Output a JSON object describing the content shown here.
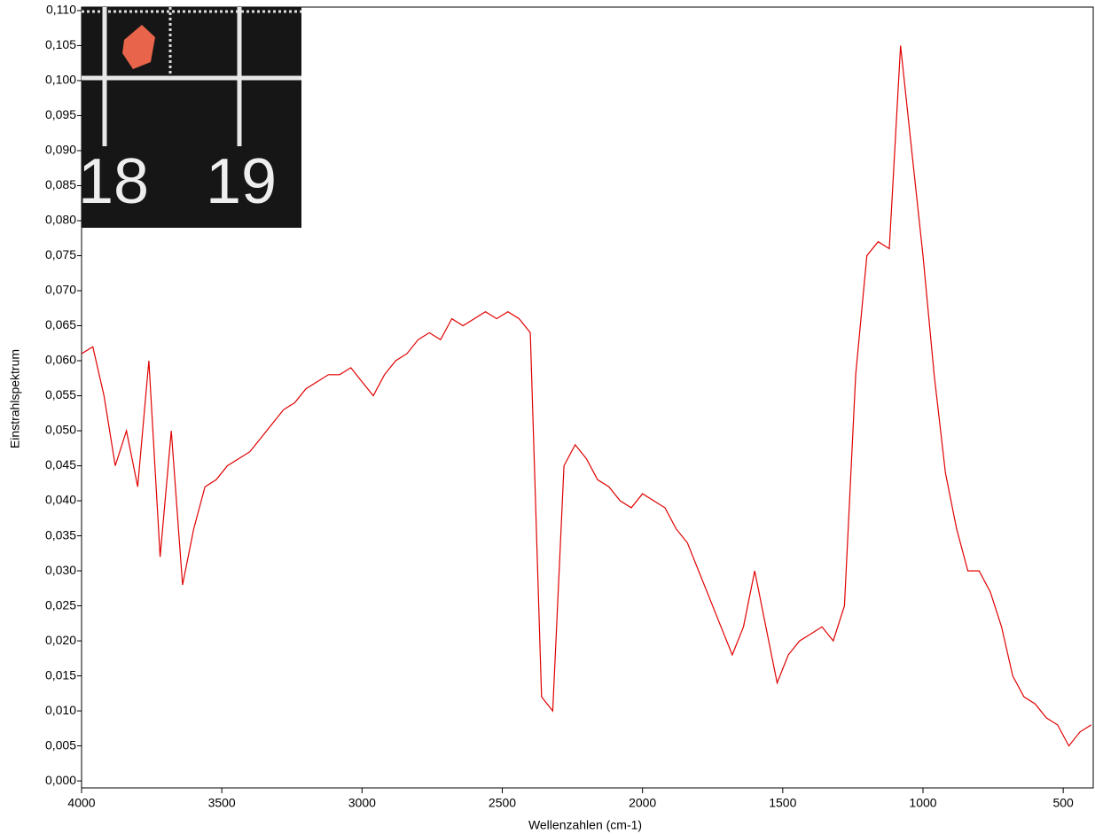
{
  "chart_data": {
    "type": "line",
    "x_label": "Wellenzahlen (cm-1)",
    "y_label": "Einstrahlspektrum",
    "color": "#e00000",
    "inset_text": [
      "18",
      "19"
    ],
    "x": [
      4000,
      3960,
      3920,
      3880,
      3840,
      3800,
      3760,
      3720,
      3680,
      3640,
      3600,
      3560,
      3520,
      3480,
      3440,
      3400,
      3360,
      3320,
      3280,
      3240,
      3200,
      3160,
      3120,
      3080,
      3040,
      3000,
      2960,
      2920,
      2880,
      2840,
      2800,
      2760,
      2720,
      2680,
      2640,
      2600,
      2560,
      2520,
      2480,
      2440,
      2400,
      2360,
      2320,
      2280,
      2240,
      2200,
      2160,
      2120,
      2080,
      2040,
      2000,
      1960,
      1920,
      1880,
      1840,
      1800,
      1760,
      1720,
      1680,
      1640,
      1600,
      1560,
      1520,
      1480,
      1440,
      1400,
      1360,
      1320,
      1280,
      1240,
      1200,
      1160,
      1120,
      1080,
      1040,
      1000,
      960,
      920,
      880,
      840,
      800,
      760,
      720,
      680,
      640,
      600,
      560,
      520,
      480,
      440,
      400
    ],
    "values": [
      0.061,
      0.062,
      0.055,
      0.045,
      0.05,
      0.042,
      0.06,
      0.032,
      0.05,
      0.028,
      0.036,
      0.042,
      0.043,
      0.045,
      0.046,
      0.047,
      0.049,
      0.051,
      0.053,
      0.054,
      0.056,
      0.057,
      0.058,
      0.058,
      0.059,
      0.057,
      0.055,
      0.058,
      0.06,
      0.061,
      0.063,
      0.064,
      0.063,
      0.066,
      0.065,
      0.066,
      0.067,
      0.066,
      0.067,
      0.066,
      0.064,
      0.012,
      0.01,
      0.045,
      0.048,
      0.046,
      0.043,
      0.042,
      0.04,
      0.039,
      0.041,
      0.04,
      0.039,
      0.036,
      0.034,
      0.03,
      0.026,
      0.022,
      0.018,
      0.022,
      0.03,
      0.022,
      0.014,
      0.018,
      0.02,
      0.021,
      0.022,
      0.02,
      0.025,
      0.058,
      0.075,
      0.077,
      0.076,
      0.105,
      0.09,
      0.075,
      0.058,
      0.044,
      0.036,
      0.03,
      0.03,
      0.027,
      0.022,
      0.015,
      0.012,
      0.011,
      0.009,
      0.008,
      0.005,
      0.007,
      0.008
    ],
    "xlim": [
      4000,
      393
    ],
    "xticks": [
      4000,
      3500,
      3000,
      2500,
      2000,
      1500,
      1000,
      500
    ],
    "ylim": [
      -0.001,
      0.1105
    ],
    "yticks": [
      {
        "value": 0,
        "label": "0,000"
      },
      {
        "value": 0.005,
        "label": "0,005"
      },
      {
        "value": 0.01,
        "label": "0,010"
      },
      {
        "value": 0.015,
        "label": "0,015"
      },
      {
        "value": 0.02,
        "label": "0,020"
      },
      {
        "value": 0.025,
        "label": "0,025"
      },
      {
        "value": 0.03,
        "label": "0,030"
      },
      {
        "value": 0.035,
        "label": "0,035"
      },
      {
        "value": 0.04,
        "label": "0,040"
      },
      {
        "value": 0.045,
        "label": "0,045"
      },
      {
        "value": 0.05,
        "label": "0,050"
      },
      {
        "value": 0.055,
        "label": "0,055"
      },
      {
        "value": 0.06,
        "label": "0,060"
      },
      {
        "value": 0.065,
        "label": "0,065"
      },
      {
        "value": 0.07,
        "label": "0,070"
      },
      {
        "value": 0.075,
        "label": "0,075"
      },
      {
        "value": 0.08,
        "label": "0,080"
      },
      {
        "value": 0.085,
        "label": "0,085"
      },
      {
        "value": 0.09,
        "label": "0,090"
      },
      {
        "value": 0.095,
        "label": "0,095"
      },
      {
        "value": 0.1,
        "label": "0,100"
      },
      {
        "value": 0.105,
        "label": "0,105"
      },
      {
        "value": 0.11,
        "label": "0,110"
      }
    ]
  }
}
